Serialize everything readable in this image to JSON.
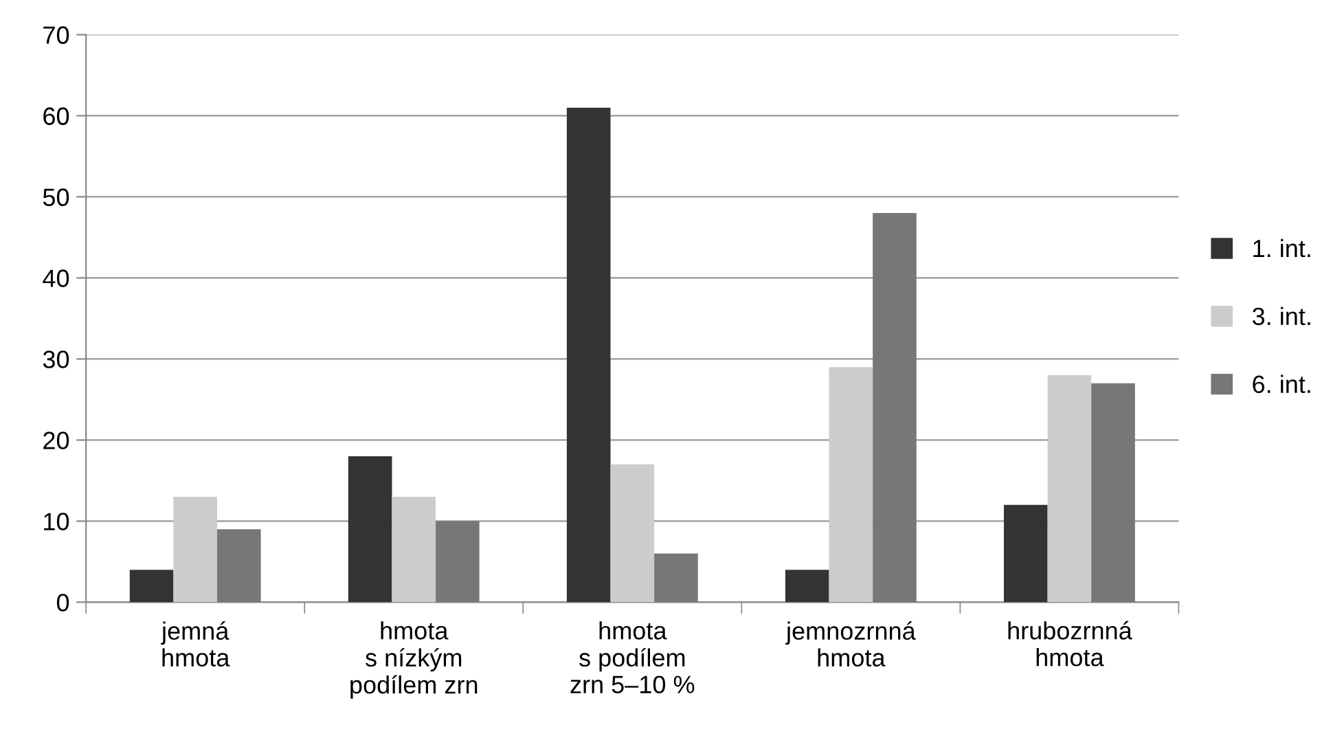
{
  "chart_data": {
    "type": "bar",
    "categories": [
      "jemná\nhmota",
      "hmota\ns nízkým\npodílem zrn",
      "hmota\ns podílem\nzrn 5–10 %",
      "jemnozrnná\nhmota",
      "hrubozrnná\nhmota"
    ],
    "series": [
      {
        "name": "1. int.",
        "color": "#333333",
        "values": [
          4,
          18,
          61,
          4,
          12
        ]
      },
      {
        "name": "3. int.",
        "color": "#cccccc",
        "values": [
          13,
          13,
          17,
          29,
          28
        ]
      },
      {
        "name": "6. int.",
        "color": "#777777",
        "values": [
          9,
          10,
          6,
          48,
          27
        ]
      }
    ],
    "ylim": [
      0,
      70
    ],
    "yticks": [
      0,
      10,
      20,
      30,
      40,
      50,
      60,
      70
    ],
    "grid": "y",
    "legend": "right"
  }
}
